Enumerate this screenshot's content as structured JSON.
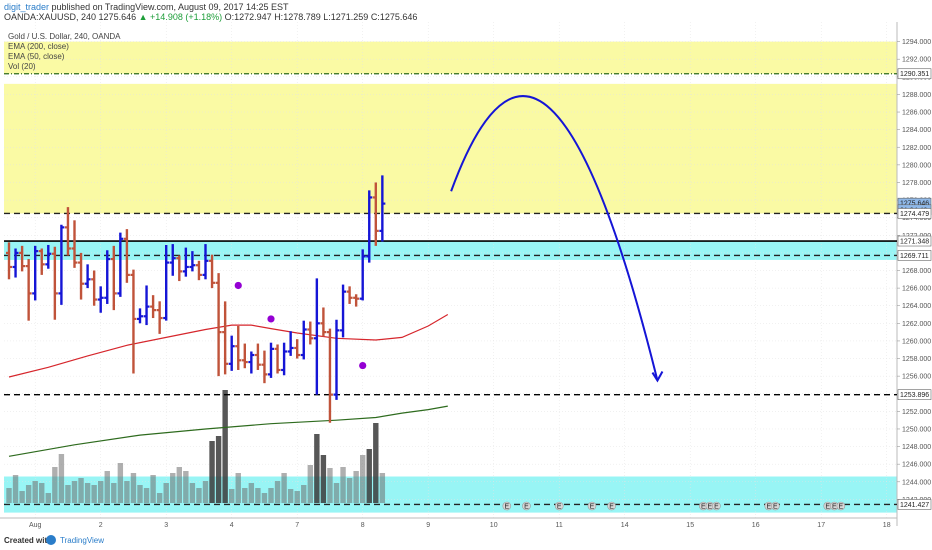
{
  "header": {
    "author": "digit_trader",
    "published": "published on TradingView.com, August 09, 2017 14:25 EST",
    "symbol_line": "OANDA:XAUUSD, 240",
    "ohlc": {
      "last": "1275.646",
      "change": "+14.908 (+1.18%)",
      "o": "O:1272.947",
      "h": "H:1278.789",
      "l": "L:1271.259",
      "c": "C:1275.646"
    }
  },
  "legend": {
    "title": "Gold / U.S. Dollar, 240, OANDA",
    "items": [
      "EMA (200, close)",
      "EMA (50, close)",
      "Vol (20)"
    ]
  },
  "footer": {
    "created": "Created with",
    "brand": "TradingView"
  },
  "colors": {
    "up_bar": "#1515d6",
    "down_bar": "#c0533a",
    "ema50": "#d6262c",
    "ema200": "#2e6b1e",
    "yellow_zone": "#fafa9a",
    "cyan_zone": "#86f3f3",
    "projection": "#1515d6",
    "signal_dot": "#9400d3"
  },
  "chart_data": {
    "type": "ohlc",
    "ylim": [
      1240,
      1296
    ],
    "y_ticks": [
      "1242.000",
      "1244.000",
      "1246.000",
      "1248.000",
      "1250.000",
      "1252.000",
      "1254.000",
      "1256.000",
      "1258.000",
      "1260.000",
      "1262.000",
      "1264.000",
      "1266.000",
      "1268.000",
      "1270.000",
      "1272.000",
      "1274.000",
      "1276.000",
      "1278.000",
      "1280.000",
      "1282.000",
      "1284.000",
      "1286.000",
      "1288.000",
      "1290.000",
      "1292.000",
      "1294.000"
    ],
    "x_ticks": [
      {
        "label": "Aug",
        "bar": 4
      },
      {
        "label": "2",
        "bar": 14
      },
      {
        "label": "3",
        "bar": 24
      },
      {
        "label": "4",
        "bar": 34
      },
      {
        "label": "7",
        "bar": 44
      },
      {
        "label": "8",
        "bar": 54
      },
      {
        "label": "9",
        "bar": 64
      },
      {
        "label": "10",
        "bar": 74
      },
      {
        "label": "11",
        "bar": 84
      },
      {
        "label": "14",
        "bar": 94
      },
      {
        "label": "15",
        "bar": 104
      },
      {
        "label": "16",
        "bar": 114
      },
      {
        "label": "17",
        "bar": 124
      },
      {
        "label": "18",
        "bar": 134
      }
    ],
    "price_boxes": [
      {
        "label": "1290.351",
        "value": 1290.351,
        "bg": "#ffffff",
        "fg": "#222222"
      },
      {
        "label": "1275.646",
        "value": 1275.646,
        "bg": "#8fb8e8",
        "fg": "#ffffff"
      },
      {
        "label": "01:34:46",
        "value": 1274.9,
        "bg": "#8fb8e8",
        "fg": "#ffffff"
      },
      {
        "label": "1274.479",
        "value": 1274.479,
        "bg": "#ffffff",
        "fg": "#222222"
      },
      {
        "label": "1271.348",
        "value": 1271.348,
        "bg": "#ffffff",
        "fg": "#222222"
      },
      {
        "label": "1269.711",
        "value": 1269.711,
        "bg": "#ffffff",
        "fg": "#222222"
      },
      {
        "label": "1253.896",
        "value": 1253.896,
        "bg": "#ffffff",
        "fg": "#222222"
      },
      {
        "label": "1241.427",
        "value": 1241.427,
        "bg": "#ffffff",
        "fg": "#222222"
      }
    ],
    "zones": [
      {
        "kind": "yellow",
        "from": 1290.351,
        "to": 1294
      },
      {
        "kind": "yellow",
        "from": 1274.479,
        "to": 1289.2
      },
      {
        "kind": "cyan",
        "from": 1269.2,
        "to": 1271.348
      },
      {
        "kind": "cyan",
        "from": 1240.5,
        "to": 1244.6
      }
    ],
    "levels": [
      {
        "value": 1290.351,
        "style": "dash-dot",
        "color": "#2e6b1e"
      },
      {
        "value": 1274.479,
        "style": "dashed",
        "color": "#222222"
      },
      {
        "value": 1271.348,
        "style": "solid",
        "color": "#000000"
      },
      {
        "value": 1269.711,
        "style": "dashed",
        "color": "#222222"
      },
      {
        "value": 1253.896,
        "style": "dashed",
        "color": "#000000"
      },
      {
        "value": 1241.427,
        "style": "dashed",
        "color": "#222222"
      }
    ],
    "series": [
      {
        "name": "EMA (50, close)",
        "points": [
          [
            0,
            1255.9
          ],
          [
            6,
            1257.0
          ],
          [
            12,
            1258.3
          ],
          [
            18,
            1259.5
          ],
          [
            24,
            1260.4
          ],
          [
            30,
            1261.3
          ],
          [
            34,
            1261.8
          ],
          [
            37,
            1261.8
          ],
          [
            40,
            1261.4
          ],
          [
            44,
            1260.9
          ],
          [
            50,
            1260.3
          ],
          [
            56,
            1260.1
          ],
          [
            60,
            1260.4
          ],
          [
            64,
            1261.7
          ],
          [
            67,
            1263.0
          ]
        ]
      },
      {
        "name": "EMA (200, close)",
        "points": [
          [
            0,
            1246.9
          ],
          [
            10,
            1248.2
          ],
          [
            20,
            1249.3
          ],
          [
            30,
            1250.0
          ],
          [
            40,
            1250.6
          ],
          [
            50,
            1251.0
          ],
          [
            56,
            1251.3
          ],
          [
            60,
            1251.8
          ],
          [
            64,
            1252.2
          ],
          [
            67,
            1252.6
          ]
        ]
      }
    ],
    "bars": [
      [
        1270.0,
        1271.2,
        1267.0,
        1268.4
      ],
      [
        1268.4,
        1270.5,
        1267.2,
        1270.0
      ],
      [
        1270.0,
        1270.8,
        1267.9,
        1268.5
      ],
      [
        1268.5,
        1269.3,
        1262.3,
        1265.4
      ],
      [
        1265.4,
        1270.8,
        1264.6,
        1270.2
      ],
      [
        1270.2,
        1270.5,
        1267.5,
        1268.7
      ],
      [
        1268.7,
        1270.9,
        1268.2,
        1269.9
      ],
      [
        1269.9,
        1270.7,
        1262.4,
        1265.4
      ],
      [
        1265.4,
        1273.2,
        1264.1,
        1272.9
      ],
      [
        1272.9,
        1275.2,
        1269.7,
        1270.5
      ],
      [
        1270.5,
        1273.7,
        1268.3,
        1268.9
      ],
      [
        1268.9,
        1270.0,
        1264.7,
        1266.5
      ],
      [
        1266.5,
        1268.7,
        1266.0,
        1267.0
      ],
      [
        1267.0,
        1268.0,
        1264.0,
        1264.7
      ],
      [
        1264.7,
        1266.2,
        1263.2,
        1264.9
      ],
      [
        1264.9,
        1270.3,
        1264.2,
        1269.3
      ],
      [
        1269.3,
        1270.8,
        1263.5,
        1265.4
      ],
      [
        1265.4,
        1272.3,
        1265.0,
        1271.6
      ],
      [
        1271.6,
        1272.7,
        1266.6,
        1267.5
      ],
      [
        1267.5,
        1268.1,
        1256.3,
        1262.5
      ],
      [
        1262.5,
        1263.7,
        1262.0,
        1262.8
      ],
      [
        1262.8,
        1266.3,
        1261.8,
        1263.9
      ],
      [
        1263.9,
        1265.2,
        1262.6,
        1263.5
      ],
      [
        1263.5,
        1264.5,
        1260.8,
        1262.6
      ],
      [
        1262.6,
        1270.9,
        1262.3,
        1268.9
      ],
      [
        1268.9,
        1271.0,
        1267.4,
        1269.4
      ],
      [
        1269.4,
        1269.7,
        1266.8,
        1267.9
      ],
      [
        1267.9,
        1270.6,
        1267.3,
        1268.4
      ],
      [
        1268.4,
        1270.2,
        1267.9,
        1268.6
      ],
      [
        1268.6,
        1269.1,
        1266.9,
        1267.5
      ],
      [
        1267.5,
        1271.0,
        1267.0,
        1269.1
      ],
      [
        1269.1,
        1269.8,
        1266.0,
        1266.6
      ],
      [
        1266.6,
        1267.7,
        1256.0,
        1261.0
      ],
      [
        1261.0,
        1264.5,
        1256.2,
        1257.4
      ],
      [
        1257.4,
        1260.6,
        1256.6,
        1259.4
      ],
      [
        1259.4,
        1261.7,
        1256.7,
        1257.8
      ],
      [
        1257.8,
        1259.7,
        1256.9,
        1257.6
      ],
      [
        1257.6,
        1258.8,
        1256.3,
        1258.4
      ],
      [
        1258.4,
        1259.7,
        1256.7,
        1257.3
      ],
      [
        1257.3,
        1258.9,
        1255.2,
        1256.2
      ],
      [
        1256.2,
        1259.8,
        1255.8,
        1259.1
      ],
      [
        1259.1,
        1259.6,
        1256.3,
        1256.7
      ],
      [
        1256.7,
        1259.8,
        1256.1,
        1258.8
      ],
      [
        1258.8,
        1261.1,
        1258.3,
        1259.2
      ],
      [
        1259.2,
        1260.2,
        1258.0,
        1258.4
      ],
      [
        1258.4,
        1262.3,
        1257.9,
        1261.3
      ],
      [
        1261.3,
        1262.2,
        1259.6,
        1260.3
      ],
      [
        1260.3,
        1267.1,
        1253.9,
        1262.0
      ],
      [
        1262.0,
        1263.8,
        1260.5,
        1261.0
      ],
      [
        1261.0,
        1261.4,
        1250.7,
        1253.9
      ],
      [
        1253.9,
        1262.4,
        1253.3,
        1261.2
      ],
      [
        1261.2,
        1266.4,
        1260.4,
        1265.6
      ],
      [
        1265.6,
        1266.2,
        1264.2,
        1264.9
      ],
      [
        1264.9,
        1265.3,
        1263.9,
        1264.8
      ],
      [
        1264.8,
        1270.4,
        1264.6,
        1269.6
      ],
      [
        1269.6,
        1277.1,
        1268.9,
        1276.3
      ],
      [
        1276.3,
        1278.0,
        1270.8,
        1272.5
      ],
      [
        1272.5,
        1278.8,
        1271.3,
        1275.6
      ]
    ],
    "volume": [
      {
        "v": 15,
        "t": "g"
      },
      {
        "v": 28,
        "t": "g"
      },
      {
        "v": 12,
        "t": "g"
      },
      {
        "v": 18,
        "t": "g"
      },
      {
        "v": 22,
        "t": "g"
      },
      {
        "v": 20,
        "t": "g"
      },
      {
        "v": 10,
        "t": "g"
      },
      {
        "v": 36,
        "t": "g"
      },
      {
        "v": 49,
        "t": "g"
      },
      {
        "v": 18,
        "t": "g"
      },
      {
        "v": 22,
        "t": "g"
      },
      {
        "v": 25,
        "t": "g"
      },
      {
        "v": 20,
        "t": "g"
      },
      {
        "v": 18,
        "t": "g"
      },
      {
        "v": 22,
        "t": "g"
      },
      {
        "v": 32,
        "t": "g"
      },
      {
        "v": 20,
        "t": "g"
      },
      {
        "v": 40,
        "t": "g"
      },
      {
        "v": 22,
        "t": "g"
      },
      {
        "v": 30,
        "t": "g"
      },
      {
        "v": 18,
        "t": "g"
      },
      {
        "v": 15,
        "t": "g"
      },
      {
        "v": 28,
        "t": "g"
      },
      {
        "v": 10,
        "t": "g"
      },
      {
        "v": 20,
        "t": "g"
      },
      {
        "v": 30,
        "t": "g"
      },
      {
        "v": 36,
        "t": "g"
      },
      {
        "v": 32,
        "t": "g"
      },
      {
        "v": 20,
        "t": "g"
      },
      {
        "v": 15,
        "t": "g"
      },
      {
        "v": 22,
        "t": "g"
      },
      {
        "v": 62,
        "t": "d"
      },
      {
        "v": 67,
        "t": "d"
      },
      {
        "v": 113,
        "t": "d"
      },
      {
        "v": 14,
        "t": "g"
      },
      {
        "v": 30,
        "t": "g"
      },
      {
        "v": 15,
        "t": "g"
      },
      {
        "v": 20,
        "t": "g"
      },
      {
        "v": 15,
        "t": "g"
      },
      {
        "v": 10,
        "t": "g"
      },
      {
        "v": 15,
        "t": "g"
      },
      {
        "v": 22,
        "t": "g"
      },
      {
        "v": 30,
        "t": "g"
      },
      {
        "v": 14,
        "t": "g"
      },
      {
        "v": 12,
        "t": "g"
      },
      {
        "v": 18,
        "t": "g"
      },
      {
        "v": 38,
        "t": "g"
      },
      {
        "v": 69,
        "t": "d"
      },
      {
        "v": 48,
        "t": "d"
      },
      {
        "v": 35,
        "t": "g"
      },
      {
        "v": 20,
        "t": "g"
      },
      {
        "v": 36,
        "t": "g"
      },
      {
        "v": 25,
        "t": "g"
      },
      {
        "v": 32,
        "t": "g"
      },
      {
        "v": 48,
        "t": "g"
      },
      {
        "v": 54,
        "t": "d"
      },
      {
        "v": 80,
        "t": "d"
      },
      {
        "v": 30,
        "t": "g"
      }
    ],
    "dots": [
      [
        35,
        1266.3
      ],
      [
        40,
        1262.5
      ],
      [
        54,
        1257.2
      ]
    ],
    "events": [
      {
        "bar": 76,
        "label": "E"
      },
      {
        "bar": 79,
        "label": "E"
      },
      {
        "bar": 84,
        "label": "E"
      },
      {
        "bar": 89,
        "label": "E"
      },
      {
        "bar": 92,
        "label": "E"
      },
      {
        "bar": 106,
        "label": "E"
      },
      {
        "bar": 107,
        "label": "E"
      },
      {
        "bar": 108,
        "label": "E"
      },
      {
        "bar": 116,
        "label": "E"
      },
      {
        "bar": 117,
        "label": "E"
      },
      {
        "bar": 125,
        "label": "E"
      },
      {
        "bar": 126,
        "label": "E"
      },
      {
        "bar": 127,
        "label": "E"
      }
    ],
    "projection": {
      "start": [
        67.5,
        1277.0
      ],
      "control": [
        82.0,
        1306.5
      ],
      "end": [
        99.0,
        1255.5
      ]
    }
  }
}
